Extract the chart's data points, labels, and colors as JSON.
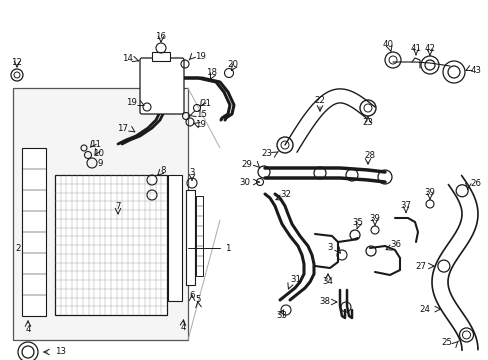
{
  "bg_color": "#ffffff",
  "fig_width": 4.89,
  "fig_height": 3.6,
  "dpi": 100,
  "lc": "#1a1a1a",
  "label_fontsize": 6.2,
  "label_color": "#111111"
}
